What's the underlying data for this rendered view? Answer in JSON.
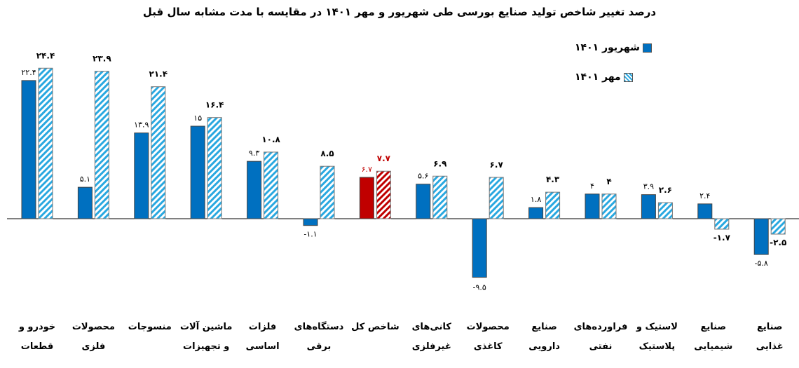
{
  "chart_data": {
    "type": "bar",
    "title": "درصد تغییر شاخص تولید صنایع بورسی طی شهریور و مهر ۱۴۰۱ در مقایسه با مدت مشابه سال قبل",
    "categories": [
      [
        "خودرو و",
        "قطعات"
      ],
      [
        "محصولات",
        "فلزی"
      ],
      [
        "منسوجات",
        ""
      ],
      [
        "ماشین آلات",
        "و تجهیزات"
      ],
      [
        "فلزات",
        "اساسی"
      ],
      [
        "دستگاه‌های",
        "برقی"
      ],
      [
        "شاخص کل",
        ""
      ],
      [
        "کانی‌های",
        "غیرفلزی"
      ],
      [
        "محصولات",
        "کاغذی"
      ],
      [
        "صنایع",
        "دارویی"
      ],
      [
        "فراورده‌های",
        "نفتی"
      ],
      [
        "لاستیک و",
        "پلاستیک"
      ],
      [
        "صنایع",
        "شیمیایی"
      ],
      [
        "صنایع",
        "غذایی"
      ]
    ],
    "series": [
      {
        "name": "شهریور ۱۴۰۱",
        "color": "#0070c0",
        "pattern": "solid",
        "values": [
          22.4,
          5.1,
          13.9,
          15,
          9.3,
          -1.1,
          6.7,
          5.6,
          -9.5,
          1.8,
          4,
          3.9,
          2.4,
          -5.8
        ],
        "labels": [
          "۲۲.۴",
          "۵.۱",
          "۱۳.۹",
          "۱۵",
          "۹.۳",
          "-۱.۱",
          "۶.۷",
          "۵.۶",
          "-۹.۵",
          "۱.۸",
          "۴",
          "۳.۹",
          "۲.۴",
          "-۵.۸"
        ]
      },
      {
        "name": "مهر ۱۴۰۱",
        "color": "#29a8e0",
        "pattern": "diagonal-stripes",
        "values": [
          24.4,
          23.9,
          21.4,
          16.4,
          10.8,
          8.5,
          7.7,
          6.9,
          6.7,
          4.3,
          4,
          2.6,
          -1.7,
          -2.5
        ],
        "labels": [
          "۲۴.۴",
          "۲۳.۹",
          "۲۱.۴",
          "۱۶.۴",
          "۱۰.۸",
          "۸.۵",
          "۷.۷",
          "۶.۹",
          "۶.۷",
          "۴.۳",
          "۴",
          "۲.۶",
          "-۱.۷",
          "-۲.۵"
        ]
      }
    ],
    "highlight": {
      "category_index": 6,
      "color": "#c00000"
    },
    "legend_position": "top-right",
    "grid": false,
    "ylim": [
      -11,
      25
    ]
  }
}
